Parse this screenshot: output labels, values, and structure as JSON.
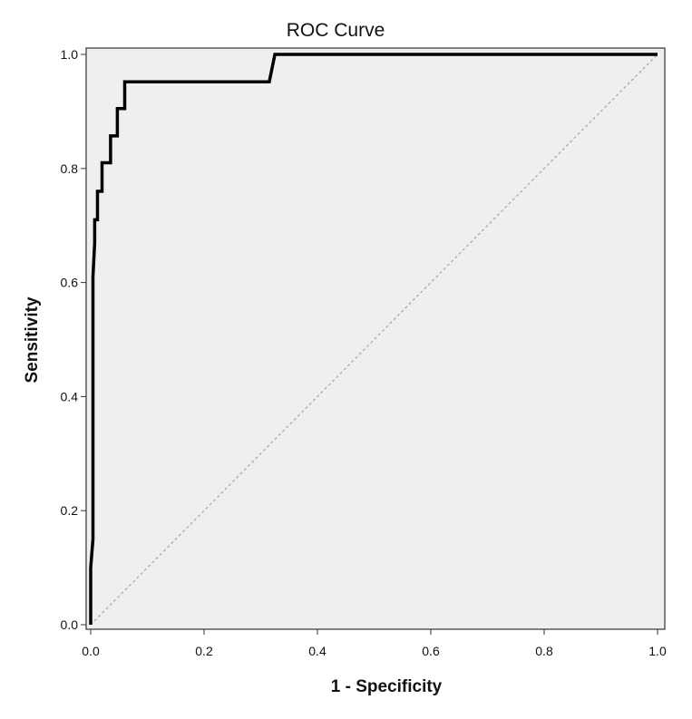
{
  "chart_data": {
    "type": "line",
    "title": "ROC Curve",
    "xlabel": "1 - Specificity",
    "ylabel": "Sensitivity",
    "xlim": [
      0,
      1
    ],
    "ylim": [
      0,
      1
    ],
    "x_ticks": [
      "0.0",
      "0.2",
      "0.4",
      "0.6",
      "0.8",
      "1.0"
    ],
    "y_ticks": [
      "0.0",
      "0.2",
      "0.4",
      "0.6",
      "0.8",
      "1.0"
    ],
    "x_tick_values": [
      0,
      0.2,
      0.4,
      0.6,
      0.8,
      1.0
    ],
    "y_tick_values": [
      0,
      0.2,
      0.4,
      0.6,
      0.8,
      1.0
    ],
    "grid": false,
    "plot_background": "#efefef",
    "series": [
      {
        "style": "solid",
        "color": "#000000",
        "x": [
          0.0,
          0.0,
          0.004,
          0.004,
          0.007,
          0.007,
          0.012,
          0.012,
          0.02,
          0.02,
          0.035,
          0.035,
          0.047,
          0.047,
          0.06,
          0.06,
          0.075,
          0.075,
          0.315,
          0.325,
          1.0
        ],
        "y": [
          0.0,
          0.1,
          0.15,
          0.61,
          0.67,
          0.71,
          0.71,
          0.76,
          0.76,
          0.81,
          0.81,
          0.857,
          0.857,
          0.905,
          0.905,
          0.952,
          0.952,
          0.952,
          0.952,
          1.0,
          1.0
        ]
      },
      {
        "style": "dashed",
        "color": "#a8a8a8",
        "x": [
          0,
          1
        ],
        "y": [
          0,
          1
        ]
      }
    ]
  }
}
